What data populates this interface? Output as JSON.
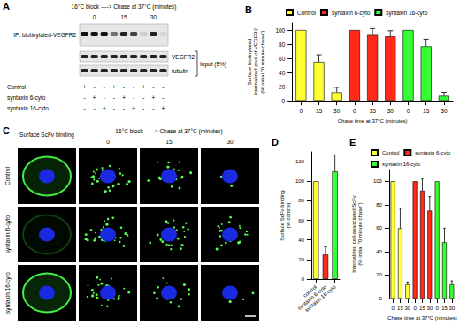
{
  "blot": {
    "panel": "A",
    "header": "16°C block ----> Chase at 37°C (minutes)",
    "timepoints": [
      "0",
      "15",
      "30"
    ],
    "rows": [
      "IP: biotinylated-VEGFR2",
      "VEGFR2",
      "tubulin"
    ],
    "input_label": "Input (5%)",
    "conditions": [
      {
        "name": "Control",
        "lanes": [
          "+",
          "-",
          "-",
          "+",
          "-",
          "-",
          "+",
          "-",
          "-"
        ]
      },
      {
        "name": "syntaxin 6-cyto",
        "lanes": [
          "-",
          "+",
          "-",
          "-",
          "+",
          "-",
          "-",
          "+",
          "-"
        ]
      },
      {
        "name": "syntaxin 16-cyto",
        "lanes": [
          "-",
          "-",
          "+",
          "-",
          "-",
          "+",
          "-",
          "-",
          "+"
        ]
      }
    ]
  },
  "micrographs": {
    "panel": "C",
    "surface_header": "Surface ScFv binding",
    "header": "16°C block------> Chase at 37°C (minutes)",
    "timepoints": [
      "0",
      "15",
      "30"
    ],
    "rows": [
      "Control",
      "syntaxin 6-cyto",
      "syntaxin 16-cyto"
    ]
  },
  "chart_data": [
    {
      "panel": "B",
      "type": "bar",
      "categories": [
        "0",
        "15",
        "30",
        "0",
        "15",
        "30",
        "0",
        "15",
        "30"
      ],
      "xlabel": "Chase time at 37°C (minutes)",
      "ylabel": "Surface biotinylated\ninternalized pool of VEGFR2\n(% initial \"0 minute chase\")",
      "ylim": [
        0,
        110
      ],
      "yticks": [
        0,
        20,
        40,
        60,
        80,
        100
      ],
      "grid": false,
      "legend": "top",
      "series": [
        {
          "name": "Control",
          "color": "#ffff33",
          "values": [
            100,
            55,
            12,
            null,
            null,
            null,
            null,
            null,
            null
          ],
          "errors": [
            0,
            10,
            7,
            null,
            null,
            null,
            null,
            null,
            null
          ]
        },
        {
          "name": "syntaxin 6-cyto",
          "color": "#ff2a1a",
          "values": [
            null,
            null,
            null,
            100,
            93,
            91,
            null,
            null,
            null
          ],
          "errors": [
            null,
            null,
            null,
            0,
            9,
            8,
            null,
            null,
            null
          ]
        },
        {
          "name": "syntaxin 16-cyto",
          "color": "#33ff33",
          "values": [
            null,
            null,
            null,
            null,
            null,
            null,
            100,
            77,
            7
          ],
          "errors": [
            null,
            null,
            null,
            null,
            null,
            null,
            0,
            10,
            5
          ]
        }
      ]
    },
    {
      "panel": "D",
      "type": "bar",
      "categories": [
        "control",
        "syntaxin 6-cyto",
        "syntaxin 16-cyto"
      ],
      "ylabel": "Surface ScFv-binding\n(% control)",
      "values": [
        100,
        25,
        110
      ],
      "errors": [
        0,
        8,
        17
      ],
      "colors": [
        "#ffff33",
        "#ff2a1a",
        "#33ff33"
      ],
      "ylim": [
        0,
        130
      ],
      "yticks": [
        0,
        20,
        40,
        60,
        80,
        100,
        120
      ],
      "grid": false
    },
    {
      "panel": "E",
      "type": "bar",
      "categories": [
        "0",
        "15",
        "30",
        "0",
        "15",
        "30",
        "0",
        "15",
        "30"
      ],
      "xlabel": "Chase time at 37°C (minutes)",
      "ylabel": "Internalized cell-associated ScFv\n(% initial \"0 minute chase\")",
      "ylim": [
        0,
        110
      ],
      "yticks": [
        0,
        20,
        40,
        60,
        80,
        100
      ],
      "grid": false,
      "legend": "top",
      "series": [
        {
          "name": "Control",
          "color": "#ffff33",
          "values": [
            100,
            60,
            12,
            null,
            null,
            null,
            null,
            null,
            null
          ],
          "errors": [
            0,
            17,
            2,
            null,
            null,
            null,
            null,
            null,
            null
          ]
        },
        {
          "name": "syntaxin 6-cyto",
          "color": "#ff2a1a",
          "values": [
            null,
            null,
            null,
            100,
            92,
            75,
            null,
            null,
            null
          ],
          "errors": [
            null,
            null,
            null,
            0,
            10,
            12,
            null,
            null,
            null
          ]
        },
        {
          "name": "syntaxin 16-cyto",
          "color": "#33ff33",
          "values": [
            null,
            null,
            null,
            null,
            null,
            null,
            100,
            48,
            12
          ],
          "errors": [
            null,
            null,
            null,
            null,
            null,
            null,
            0,
            12,
            3
          ]
        }
      ]
    }
  ]
}
